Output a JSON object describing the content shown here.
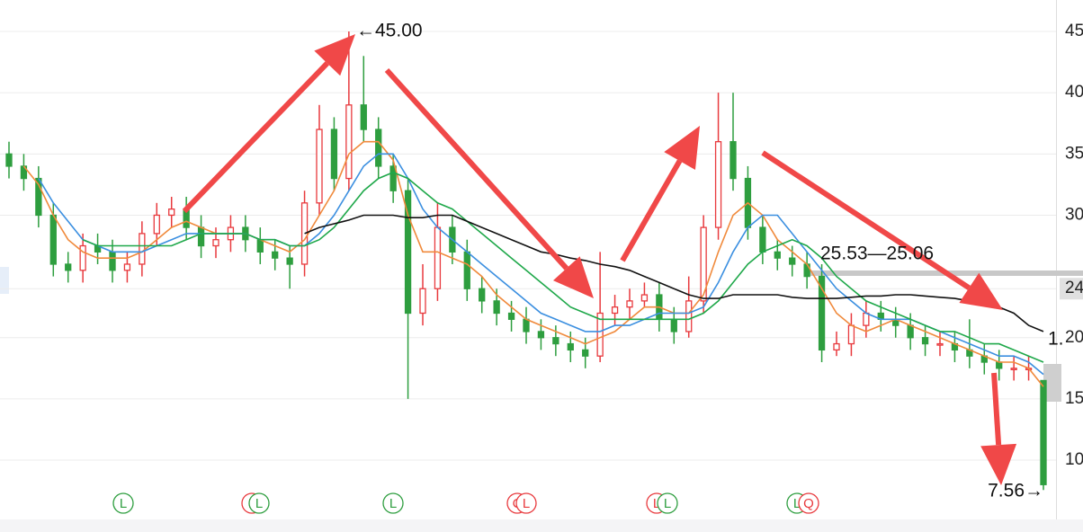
{
  "chart_data": {
    "type": "candlestick",
    "categories": [
      null,
      null,
      null,
      null,
      null,
      null,
      null,
      null,
      null,
      null,
      null,
      null,
      null,
      null,
      null,
      null,
      null,
      null,
      null,
      null,
      null,
      null,
      null,
      null,
      null,
      null,
      null,
      null,
      null,
      null,
      null,
      null,
      null,
      null,
      null,
      null,
      null,
      null,
      null,
      null,
      null,
      null,
      null,
      null,
      null,
      null,
      null,
      null,
      null,
      null,
      null,
      null,
      null,
      null,
      null,
      null,
      null,
      null,
      null,
      null,
      null,
      null,
      null,
      null,
      null,
      null,
      null,
      null,
      null,
      null,
      null
    ],
    "open": [
      35,
      34,
      33,
      30,
      26,
      25.5,
      27.5,
      27,
      25.5,
      26,
      28.5,
      30,
      30.5,
      29,
      27.5,
      28,
      29,
      28,
      27,
      26.5,
      26,
      31,
      37,
      33,
      39,
      37,
      34,
      32,
      22,
      24,
      29,
      27,
      24,
      23,
      22,
      21.5,
      20.5,
      20,
      19.5,
      19,
      18.5,
      22,
      22.5,
      23,
      23.5,
      21.5,
      20.5,
      23,
      29,
      36,
      33,
      29,
      27,
      26.5,
      26,
      25,
      19,
      19.5,
      21,
      22,
      21.5,
      21,
      20,
      19.5,
      19.5,
      19,
      18.5,
      18,
      17.5,
      17.5,
      16.5
    ],
    "close": [
      34,
      33,
      30,
      26,
      25.5,
      27.5,
      27,
      25.5,
      26,
      28.5,
      30,
      30.5,
      29,
      27.5,
      28,
      29,
      28,
      27,
      26.5,
      26,
      31,
      37,
      33,
      39,
      37,
      34,
      32,
      22,
      24,
      29,
      27,
      24,
      23,
      22,
      21.5,
      20.5,
      20,
      19.5,
      19,
      18.5,
      22,
      22.5,
      23,
      23.5,
      21.5,
      20.5,
      23,
      29,
      36,
      33,
      29,
      27,
      26.5,
      26,
      25,
      19,
      19.5,
      21,
      22,
      21.5,
      21,
      20,
      19.5,
      19.5,
      19,
      18.5,
      18,
      17.5,
      17.5,
      17.5,
      8
    ],
    "high": [
      36,
      35,
      34,
      31,
      27,
      28.5,
      28.5,
      28,
      27,
      29.5,
      31,
      31.5,
      31.5,
      30,
      29,
      30,
      30,
      29,
      28,
      27.5,
      32,
      39,
      38,
      45,
      43,
      38,
      35,
      33,
      26,
      31,
      30,
      28,
      25,
      24,
      23,
      22.5,
      21.5,
      21,
      20.5,
      20,
      27,
      23.5,
      24,
      24.5,
      24.5,
      22.5,
      25,
      30,
      40,
      40,
      34,
      30,
      28,
      27.5,
      27,
      26,
      20.5,
      22,
      23,
      23,
      22.5,
      22,
      21,
      20.5,
      20.5,
      21.5,
      19.5,
      19,
      18.5,
      18.5,
      16.5
    ],
    "low": [
      33,
      32,
      29,
      25,
      24.5,
      24.5,
      26,
      24.5,
      24.5,
      25,
      27.5,
      29,
      28,
      26.5,
      26.5,
      27,
      27,
      26,
      25.5,
      24,
      25,
      30,
      32,
      32,
      36,
      33,
      31,
      15,
      21,
      23,
      26,
      23,
      22,
      21,
      20.5,
      19.5,
      19,
      18.5,
      18,
      17.5,
      18,
      21,
      21.5,
      22.5,
      20.5,
      19.5,
      20,
      22,
      28,
      32,
      28,
      26,
      25.5,
      25,
      24,
      18,
      18.5,
      18.5,
      20,
      20.5,
      20,
      19,
      18.5,
      18.5,
      18,
      17.5,
      17,
      16.5,
      16.5,
      16.5,
      7.56
    ],
    "up_color": "#e8393d",
    "down_color": "#2e9e3f",
    "series": [
      {
        "color": "#f08a3c",
        "values": [
          null,
          34,
          32.5,
          30,
          28,
          27,
          26.5,
          26.5,
          26.5,
          27,
          28,
          29,
          29.5,
          29,
          28.5,
          28.5,
          28.5,
          28,
          27.5,
          27,
          28,
          30,
          32,
          35,
          36,
          36,
          34.5,
          30,
          27,
          27,
          26.5,
          26,
          25,
          23.5,
          22.5,
          21.5,
          21,
          20.5,
          20,
          19.5,
          20,
          20.5,
          21.5,
          22.5,
          22.5,
          22,
          22,
          23.5,
          27,
          30,
          31,
          30,
          28,
          27,
          26,
          24,
          22,
          21,
          20.5,
          21,
          21.5,
          21,
          20.5,
          20,
          19.5,
          19,
          18.5,
          18,
          18,
          17.5,
          16
        ]
      },
      {
        "color": "#3b8fe0",
        "values": [
          null,
          null,
          33,
          31,
          29.5,
          28,
          27.5,
          27,
          27,
          27,
          27.5,
          28,
          28.5,
          28.5,
          28.5,
          28.5,
          28.5,
          28,
          28,
          27.5,
          27.5,
          28.5,
          30,
          32,
          34,
          35,
          35,
          33,
          30.5,
          29,
          28,
          27,
          26,
          25,
          24,
          23,
          22,
          21.5,
          21,
          20.5,
          20.5,
          21,
          21,
          21.5,
          22,
          22,
          22,
          22.5,
          24.5,
          27,
          29,
          30,
          30,
          28.5,
          27,
          25.5,
          24,
          23,
          22,
          21.5,
          21.5,
          21.5,
          21,
          20.5,
          20,
          19.5,
          19,
          18.5,
          18.5,
          18,
          17
        ]
      },
      {
        "color": "#1fa84a",
        "values": [
          null,
          null,
          null,
          null,
          null,
          28,
          27.5,
          27.5,
          27.5,
          27.5,
          27.5,
          27.5,
          28,
          28.5,
          28.5,
          28.5,
          28.5,
          28,
          28,
          27.5,
          27.5,
          28,
          29,
          30.5,
          32,
          33,
          33.5,
          33,
          32,
          31,
          30.5,
          29.5,
          28.5,
          27.5,
          26.5,
          25.5,
          24.5,
          23.5,
          22.5,
          22,
          21.5,
          21.5,
          21.5,
          21.5,
          21.5,
          21.5,
          21.5,
          22,
          23,
          24.5,
          26,
          27,
          27.5,
          28,
          27.5,
          26.5,
          25,
          24,
          23,
          22.5,
          22,
          21.5,
          21,
          20.5,
          20.5,
          20,
          19.5,
          19.5,
          19,
          18.5,
          18
        ]
      },
      {
        "color": "#111111",
        "values": [
          null,
          null,
          null,
          null,
          null,
          null,
          null,
          null,
          null,
          null,
          null,
          null,
          null,
          null,
          null,
          null,
          null,
          null,
          null,
          null,
          28.5,
          29,
          29.3,
          29.6,
          30,
          30,
          30,
          29.8,
          29.8,
          30,
          30,
          29.5,
          29,
          28.5,
          28,
          27.5,
          27,
          26.8,
          26.5,
          26.3,
          26,
          25.8,
          25.5,
          25,
          24.5,
          24,
          23.5,
          23.2,
          23.2,
          23.5,
          23.5,
          23.5,
          23.5,
          23.3,
          23.2,
          23.2,
          23.2,
          23.3,
          23.4,
          23.4,
          23.5,
          23.5,
          23.4,
          23.3,
          23.2,
          23,
          22.8,
          22.5,
          22,
          21,
          20.5
        ]
      }
    ],
    "ylim": [
      5.16,
      47.57
    ],
    "yticks": [
      10,
      15,
      20,
      24,
      30,
      35,
      40,
      45
    ],
    "grid": true,
    "annotations": [
      "←45.00",
      "7.56→",
      "25.53—25.06",
      "1."
    ],
    "markers": [
      {
        "label": "L",
        "color": "#2e9e3f"
      },
      {
        "label": "L",
        "color": "#e8393d"
      },
      {
        "label": "L",
        "color": "#2e9e3f"
      },
      {
        "label": "L",
        "color": "#2e9e3f"
      },
      {
        "label": "C",
        "color": "#e8393d"
      },
      {
        "label": "L",
        "color": "#e8393d"
      },
      {
        "label": "L",
        "color": "#e8393d"
      },
      {
        "label": "L",
        "color": "#2e9e3f"
      },
      {
        "label": "L",
        "color": "#2e9e3f"
      },
      {
        "label": "Q",
        "color": "#e8393d"
      }
    ]
  }
}
